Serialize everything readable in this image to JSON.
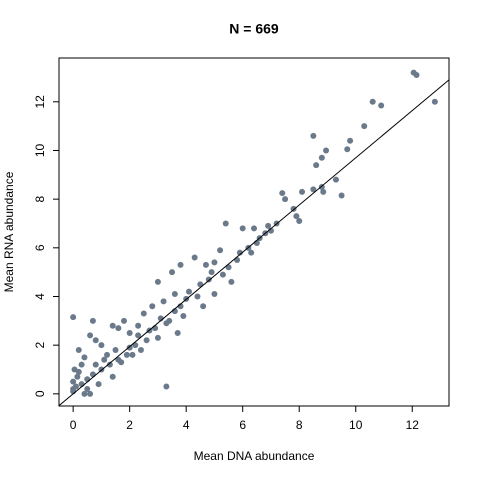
{
  "chart_data": {
    "type": "scatter",
    "title": "N = 669",
    "x_label": "Mean DNA abundance",
    "y_label": "Mean RNA abundance",
    "xlim": [
      -0.5,
      13.3
    ],
    "ylim": [
      -0.5,
      13.8
    ],
    "xticks": [
      0,
      2,
      4,
      6,
      8,
      10,
      12
    ],
    "yticks": [
      0,
      2,
      4,
      6,
      8,
      10,
      12
    ],
    "color": "#6b7a8b",
    "fit_line": {
      "slope": 0.97,
      "intercept": 0
    },
    "series": [
      {
        "name": null,
        "color": "#6b7a8b",
        "x": [
          0,
          0.7,
          3.3,
          12.05,
          12.15,
          12.8,
          10.6,
          10.9,
          10.3,
          9.8,
          8.5,
          8.95,
          8.8,
          8.6,
          9.7,
          9.3,
          8.8,
          8.5,
          9.5,
          8.85,
          7.4,
          7.5,
          8.1,
          7.9,
          7.8,
          8.0,
          7.2,
          6.9,
          5.4,
          6.0,
          6.4,
          6.6,
          6.8,
          6.2,
          5.8,
          5.2,
          5.0,
          4.7,
          4.3,
          3.8,
          3.5,
          3.0,
          4.1,
          4.5,
          4.8,
          5.5,
          5.6,
          6.3,
          5.0,
          4.0,
          3.6,
          3.2,
          2.8,
          2.5,
          3.1,
          3.4,
          3.8,
          2.9,
          2.3,
          2.0,
          1.8,
          1.6,
          1.4,
          2.2,
          2.6,
          3.0,
          3.7,
          2.4,
          1.9,
          1.5,
          1.2,
          1.0,
          0.8,
          0.6,
          1.3,
          1.0,
          0.7,
          0.5,
          0.3,
          0.2,
          0.1,
          0,
          0,
          0,
          0.4,
          0.3,
          0.2,
          0.5,
          0.9,
          1.4,
          0.6,
          1.7,
          2.1,
          2.7,
          3.3,
          4.4,
          4.6,
          5.3,
          5.9,
          6.5,
          1.1,
          0.15,
          0.05,
          0.8,
          1.6,
          2.3,
          3.6,
          4.9,
          3.9,
          7.0,
          0.4,
          2.0
        ],
        "values": [
          3.15,
          3.0,
          0.3,
          13.2,
          13.1,
          12.0,
          12.0,
          11.85,
          11.0,
          10.4,
          10.6,
          10.0,
          9.7,
          9.4,
          10.05,
          8.8,
          8.5,
          8.4,
          8.15,
          8.3,
          8.25,
          8.0,
          8.3,
          7.3,
          7.6,
          7.1,
          7.0,
          6.9,
          7.0,
          6.8,
          6.8,
          6.4,
          6.6,
          6.0,
          5.5,
          5.9,
          5.4,
          5.3,
          5.6,
          5.3,
          5.0,
          4.6,
          4.2,
          4.5,
          4.7,
          5.2,
          4.6,
          5.8,
          4.1,
          3.9,
          3.4,
          3.8,
          3.6,
          3.3,
          3.1,
          3.0,
          3.6,
          2.7,
          2.4,
          2.5,
          3.0,
          2.7,
          2.8,
          2.0,
          2.2,
          2.3,
          2.5,
          1.8,
          1.6,
          1.8,
          1.6,
          2.0,
          2.2,
          2.4,
          1.2,
          1.0,
          0.8,
          0.6,
          0.4,
          0.9,
          0.3,
          0.1,
          0.5,
          0.2,
          1.5,
          1.2,
          1.8,
          0.2,
          0.4,
          0.7,
          0.0,
          1.3,
          1.6,
          2.6,
          2.9,
          4.0,
          3.6,
          4.9,
          5.8,
          6.2,
          1.4,
          0.7,
          1.0,
          1.2,
          1.4,
          2.8,
          4.1,
          5.0,
          3.2,
          6.7,
          0.0,
          1.9
        ]
      }
    ]
  }
}
